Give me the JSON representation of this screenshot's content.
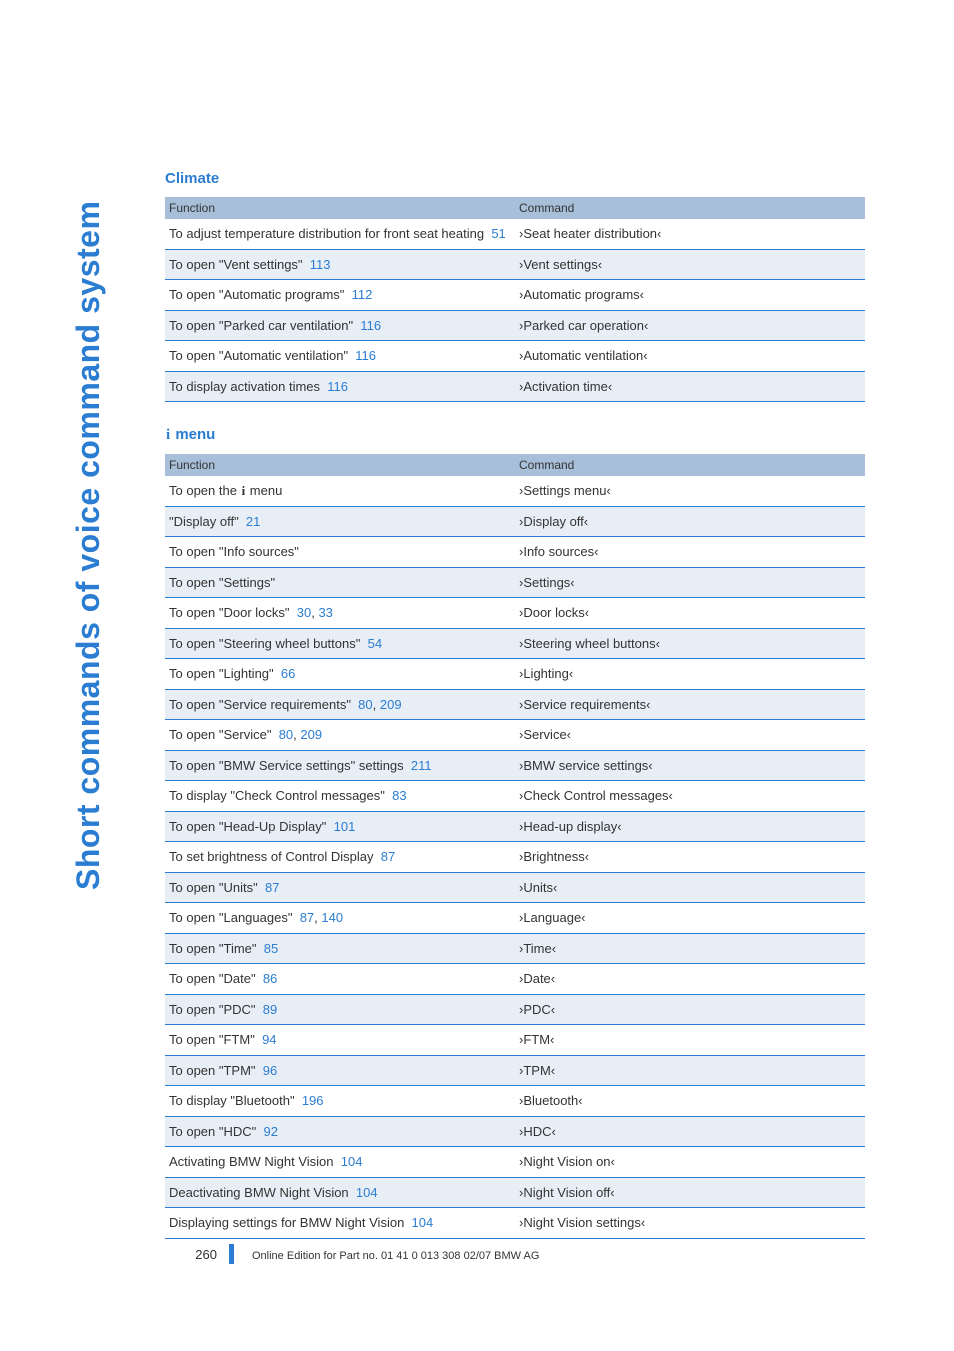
{
  "sidebar": "Short commands of voice command system",
  "section1": {
    "title": "Climate",
    "header": {
      "func": "Function",
      "cmd": "Command"
    },
    "rows": [
      {
        "func_pre": "To adjust temperature distribution for front seat heating",
        "pages": [
          "51"
        ],
        "cmd": "›Seat heater distribution‹"
      },
      {
        "func_pre": "To open \"Vent settings\"",
        "pages": [
          "113"
        ],
        "cmd": "›Vent settings‹"
      },
      {
        "func_pre": "To open \"Automatic programs\"",
        "pages": [
          "112"
        ],
        "cmd": "›Automatic programs‹"
      },
      {
        "func_pre": "To open \"Parked car ventilation\"",
        "pages": [
          "116"
        ],
        "cmd": "›Parked car operation‹"
      },
      {
        "func_pre": "To open \"Automatic ventilation\"",
        "pages": [
          "116"
        ],
        "cmd": "›Automatic ventilation‹"
      },
      {
        "func_pre": "To display activation times",
        "pages": [
          "116"
        ],
        "cmd": "›Activation time‹"
      }
    ]
  },
  "section2": {
    "title_pre": "i",
    "title_post": " menu",
    "header": {
      "func": "Function",
      "cmd": "Command"
    },
    "rows": [
      {
        "func_html": "To open the <span class=\"info-icon\">i</span> menu",
        "pages": [],
        "cmd": "›Settings menu‹"
      },
      {
        "func_pre": "\"Display off\"",
        "pages": [
          "21"
        ],
        "cmd": "›Display off‹"
      },
      {
        "func_pre": "To open \"Info sources\"",
        "pages": [],
        "cmd": "›Info sources‹"
      },
      {
        "func_pre": "To open \"Settings\"",
        "pages": [],
        "cmd": "›Settings‹"
      },
      {
        "func_pre": "To open \"Door locks\"",
        "pages": [
          "30",
          "33"
        ],
        "cmd": "›Door locks‹"
      },
      {
        "func_pre": "To open \"Steering wheel buttons\"",
        "pages": [
          "54"
        ],
        "cmd": "›Steering wheel buttons‹"
      },
      {
        "func_pre": "To open \"Lighting\"",
        "pages": [
          "66"
        ],
        "cmd": "›Lighting‹"
      },
      {
        "func_pre": "To open \"Service requirements\"",
        "pages": [
          "80",
          "209"
        ],
        "cmd": "›Service requirements‹"
      },
      {
        "func_pre": "To open \"Service\"",
        "pages": [
          "80",
          "209"
        ],
        "cmd": "›Service‹"
      },
      {
        "func_pre": "To open \"BMW Service settings\" settings",
        "pages": [
          "211"
        ],
        "cmd": "›BMW service settings‹"
      },
      {
        "func_pre": "To display \"Check Control messages\"",
        "pages": [
          "83"
        ],
        "cmd": "›Check Control messages‹"
      },
      {
        "func_pre": "To open \"Head-Up Display\"",
        "pages": [
          "101"
        ],
        "cmd": "›Head-up display‹"
      },
      {
        "func_pre": "To set brightness of Control Display",
        "pages": [
          "87"
        ],
        "cmd": "›Brightness‹"
      },
      {
        "func_pre": "To open \"Units\"",
        "pages": [
          "87"
        ],
        "cmd": "›Units‹"
      },
      {
        "func_pre": "To open \"Languages\"",
        "pages": [
          "87",
          "140"
        ],
        "cmd": "›Language‹"
      },
      {
        "func_pre": "To open \"Time\"",
        "pages": [
          "85"
        ],
        "cmd": "›Time‹"
      },
      {
        "func_pre": "To open \"Date\"",
        "pages": [
          "86"
        ],
        "cmd": "›Date‹"
      },
      {
        "func_pre": "To open \"PDC\"",
        "pages": [
          "89"
        ],
        "cmd": "›PDC‹"
      },
      {
        "func_pre": "To open \"FTM\"",
        "pages": [
          "94"
        ],
        "cmd": "›FTM‹"
      },
      {
        "func_pre": "To open \"TPM\"",
        "pages": [
          "96"
        ],
        "cmd": "›TPM‹"
      },
      {
        "func_pre": "To display \"Bluetooth\"",
        "pages": [
          "196"
        ],
        "cmd": "›Bluetooth‹"
      },
      {
        "func_pre": "To open \"HDC\"",
        "pages": [
          "92"
        ],
        "cmd": "›HDC‹"
      },
      {
        "func_pre": "Activating BMW Night Vision",
        "pages": [
          "104"
        ],
        "cmd": "›Night Vision on‹"
      },
      {
        "func_pre": "Deactivating BMW Night Vision",
        "pages": [
          "104"
        ],
        "cmd": "›Night Vision off‹"
      },
      {
        "func_pre": "Displaying settings for BMW Night Vision",
        "pages": [
          "104"
        ],
        "cmd": "›Night Vision settings‹"
      }
    ]
  },
  "footer": {
    "page_number": "260",
    "edition": "Online Edition for Part no. 01 41 0 013 308 02/07 BMW AG"
  }
}
